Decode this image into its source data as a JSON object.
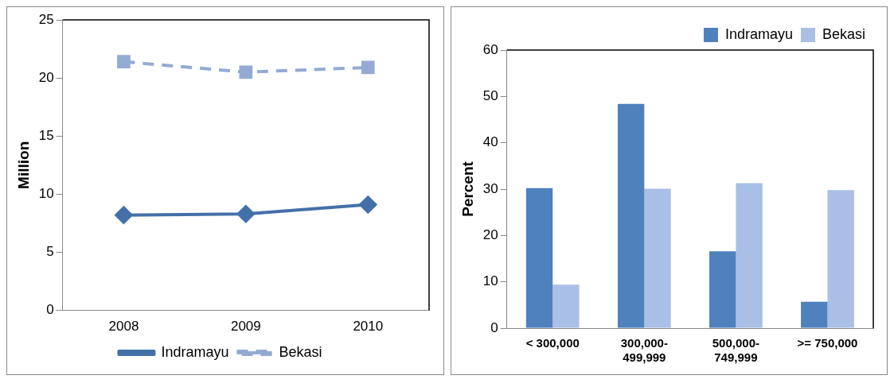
{
  "chart_data": [
    {
      "type": "line",
      "categories": [
        "2008",
        "2009",
        "2010"
      ],
      "ylabel": "Million",
      "ylim": [
        0,
        25
      ],
      "yticks": [
        0,
        5,
        10,
        15,
        20,
        25
      ],
      "grid": false,
      "legend": "bottom",
      "series": [
        {
          "name": "Indramayu",
          "color": "#4470a8",
          "values": [
            8.2,
            8.3,
            9.1
          ],
          "marker": "diamond",
          "line_style": "solid"
        },
        {
          "name": "Bekasi",
          "color": "#94aad4",
          "values": [
            21.4,
            20.5,
            20.9
          ],
          "marker": "square",
          "line_style": "dashed"
        }
      ]
    },
    {
      "type": "bar",
      "categories": [
        "< 300,000",
        "300,000-499,999",
        "500,000-749,999",
        ">= 750,000"
      ],
      "ylabel": "Percent",
      "ylim": [
        0,
        60
      ],
      "yticks": [
        0,
        10,
        20,
        30,
        40,
        50,
        60
      ],
      "grid": false,
      "legend": "top right",
      "series": [
        {
          "name": "Indramayu",
          "color": "#4f81bd",
          "values": [
            30.2,
            48.4,
            16.6,
            5.7
          ]
        },
        {
          "name": "Bekasi",
          "color": "#a9bfe6",
          "values": [
            9.4,
            30.1,
            31.3,
            29.8
          ]
        }
      ]
    }
  ]
}
